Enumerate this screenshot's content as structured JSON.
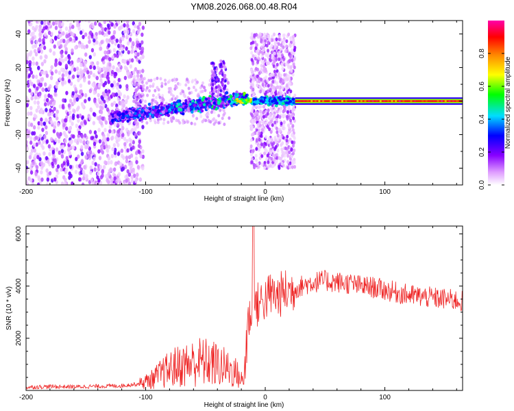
{
  "title": "YM08.2026.068.00.48.R04",
  "chart_data": [
    {
      "type": "heatmap",
      "title": "YM08.2026.068.00.48.R04",
      "xlabel": "Height of straight line (km)",
      "ylabel": "Frequency (Hz)",
      "xlim": [
        -200,
        165
      ],
      "ylim": [
        -50,
        48
      ],
      "xticks": [
        -200,
        -100,
        0,
        100
      ],
      "yticks": [
        -40,
        -20,
        0,
        20,
        40
      ],
      "colorbar": {
        "label": "Normalized spectral amplitude",
        "range": [
          0.0,
          1.0
        ],
        "ticks": [
          0.0,
          0.2,
          0.4,
          0.6,
          0.8
        ],
        "colormap": [
          "#ffffff",
          "#8800ff",
          "#0000ff",
          "#00ffff",
          "#00ff00",
          "#ffff00",
          "#ff8800",
          "#ff0000",
          "#ff00aa"
        ]
      },
      "regions": [
        {
          "x": [
            -200,
            -105
          ],
          "freq_spread": 48,
          "amplitude": 0.12,
          "description": "diffuse noise"
        },
        {
          "x": [
            -130,
            -40
          ],
          "freq_center_from": -10,
          "freq_center_to": 2,
          "amplitude": 0.35
        },
        {
          "x": [
            -40,
            -15
          ],
          "freq_center": 2,
          "amplitude": 0.45
        },
        {
          "x": [
            -12,
            25
          ],
          "freq_spread": 40,
          "amplitude": 0.15
        },
        {
          "x": [
            25,
            165
          ],
          "freq_center": 0,
          "amplitude": 0.85
        }
      ]
    },
    {
      "type": "line",
      "xlabel": "Height of straight line (km)",
      "ylabel": "SNR (10 * v/v)",
      "xlim": [
        -200,
        165
      ],
      "ylim": [
        0,
        6300
      ],
      "xticks": [
        -200,
        -100,
        0,
        100
      ],
      "yticks": [
        2000,
        4000,
        6000
      ],
      "color": "#ee2222",
      "series": [
        {
          "x": [
            -200,
            -180,
            -160,
            -140,
            -120,
            -105,
            -95,
            -85,
            -75,
            -65,
            -55,
            -45,
            -35,
            -25,
            -18,
            -15,
            -12,
            -8,
            -4,
            0,
            5,
            10,
            15,
            20,
            25,
            30,
            40,
            50,
            60,
            70,
            80,
            90,
            100,
            110,
            120,
            130,
            140,
            150,
            160,
            165
          ],
          "values": [
            120,
            150,
            140,
            160,
            180,
            260,
            420,
            700,
            900,
            1000,
            1100,
            1050,
            900,
            700,
            300,
            2500,
            3000,
            3200,
            3400,
            3500,
            3700,
            3600,
            3750,
            3800,
            3900,
            4000,
            4150,
            4200,
            4150,
            4100,
            4000,
            3950,
            3850,
            3750,
            3650,
            3600,
            3550,
            3500,
            3450,
            3400
          ]
        }
      ]
    }
  ]
}
